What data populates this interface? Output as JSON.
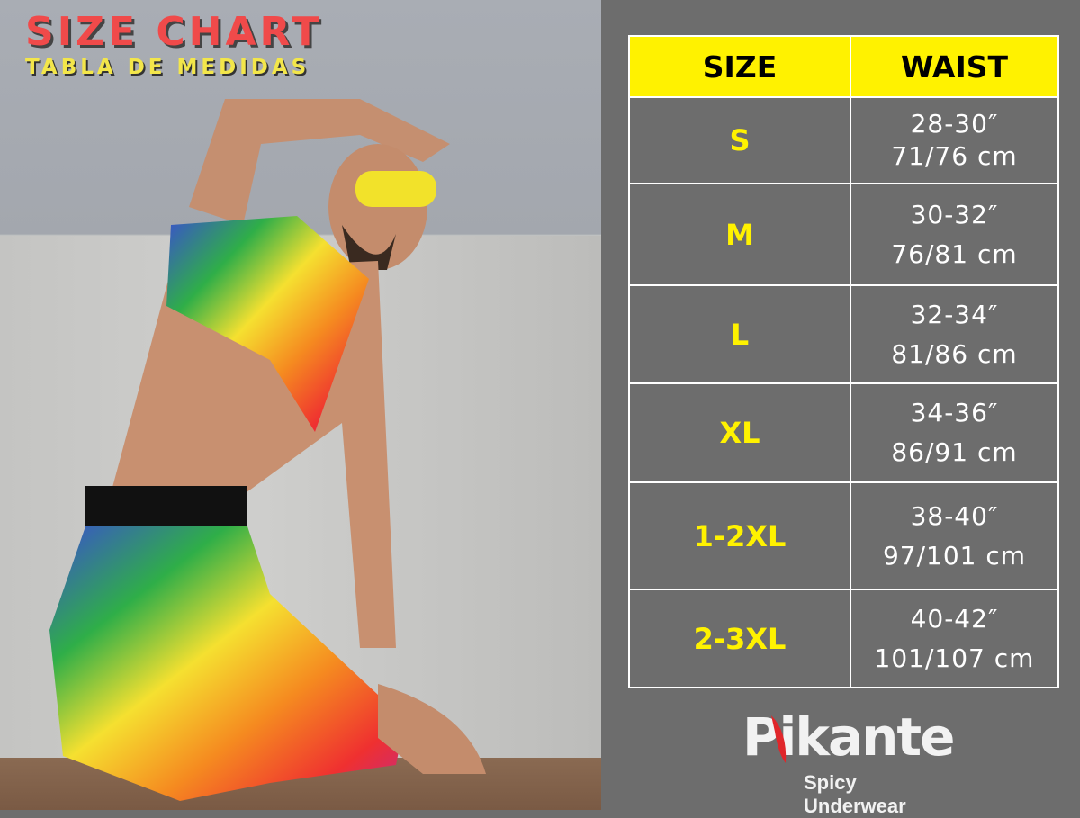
{
  "header": {
    "title": "SIZE CHART",
    "subtitle": "TABLA DE MEDIDAS"
  },
  "table": {
    "headers": [
      "SIZE",
      "WAIST"
    ],
    "rows": [
      {
        "size": "S",
        "inches": "28-30″",
        "cm": "71/76 cm"
      },
      {
        "size": "M",
        "inches": "30-32″",
        "cm": "76/81 cm"
      },
      {
        "size": "L",
        "inches": "32-34″",
        "cm": "81/86 cm"
      },
      {
        "size": "XL",
        "inches": "34-36″",
        "cm": "86/91 cm"
      },
      {
        "size": "1-2XL",
        "inches": "38-40″",
        "cm": "97/101 cm"
      },
      {
        "size": "2-3XL",
        "inches": "40-42″",
        "cm": "101/107 cm"
      }
    ]
  },
  "brand": {
    "name": "Pikante",
    "tagline": "Spicy Underwear"
  },
  "colors": {
    "header_bg": "#fff200",
    "size_text": "#fff200",
    "panel_bg": "#6d6d6d",
    "title_red": "#f04a4a"
  }
}
